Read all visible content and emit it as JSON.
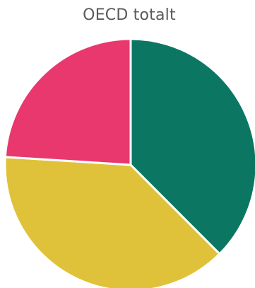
{
  "chart_data": {
    "type": "pie",
    "title": "OECD totalt",
    "slices": [
      {
        "value": 37.5,
        "color": "#0b7763"
      },
      {
        "value": 38.5,
        "color": "#e0c23a"
      },
      {
        "value": 24.0,
        "color": "#e8386d"
      }
    ]
  }
}
